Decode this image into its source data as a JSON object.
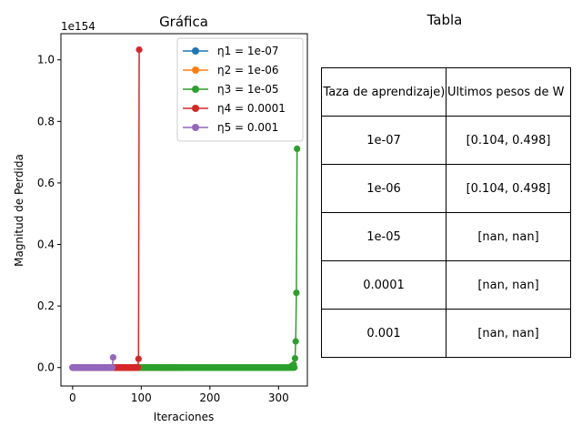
{
  "chart_data": [
    {
      "type": "line",
      "title": "Gráfica",
      "xlabel": "Iteraciones",
      "ylabel": "Magnitud de Perdida",
      "y_scale_label": "1e154",
      "xlim": [
        -17,
        342
      ],
      "ylim": [
        -0.06,
        1.085
      ],
      "xticks": [
        0,
        100,
        200,
        300
      ],
      "yticks": [
        0.0,
        0.2,
        0.4,
        0.6,
        0.8,
        1.0
      ],
      "ytick_labels": [
        "0.0",
        "0.2",
        "0.4",
        "0.6",
        "0.8",
        "1.0"
      ],
      "legend_position": "top-right",
      "grid": false,
      "series": [
        {
          "name": "η1 = 1e-07",
          "color": "#1f77b4",
          "x_start": 0,
          "x_end": 160,
          "baseline": 0.0,
          "spikes": []
        },
        {
          "name": "η2 = 1e-06",
          "color": "#ff7f0e",
          "x_start": 0,
          "x_end": 160,
          "baseline": 0.0,
          "spikes": []
        },
        {
          "name": "η3 = 1e-05",
          "color": "#2ca02c",
          "x_start": 0,
          "x_end": 327,
          "baseline": 0.0,
          "spikes": [
            [
              319,
              0.005
            ],
            [
              322,
              0.01
            ],
            [
              324,
              0.03
            ],
            [
              325,
              0.085
            ],
            [
              326,
              0.243
            ],
            [
              327,
              0.711
            ]
          ]
        },
        {
          "name": "η4 = 0.0001",
          "color": "#d62728",
          "x_start": 0,
          "x_end": 97,
          "baseline": 0.0,
          "spikes": [
            [
              96,
              0.028
            ],
            [
              97,
              1.033
            ]
          ]
        },
        {
          "name": "η5 = 0.001",
          "color": "#9467bd",
          "x_start": 0,
          "x_end": 59,
          "baseline": 0.0,
          "spikes": [
            [
              59,
              0.033
            ]
          ]
        }
      ]
    },
    {
      "type": "table",
      "title": "Tabla",
      "columns": [
        "η (Taza de aprendizaje)",
        "Ultimos pesos de W"
      ],
      "rows": [
        [
          "1e-07",
          "[0.104, 0.498]"
        ],
        [
          "1e-06",
          "[0.104, 0.498]"
        ],
        [
          "1e-05",
          "[nan, nan]"
        ],
        [
          "0.0001",
          "[nan, nan]"
        ],
        [
          "0.001",
          "[nan, nan]"
        ]
      ]
    }
  ]
}
